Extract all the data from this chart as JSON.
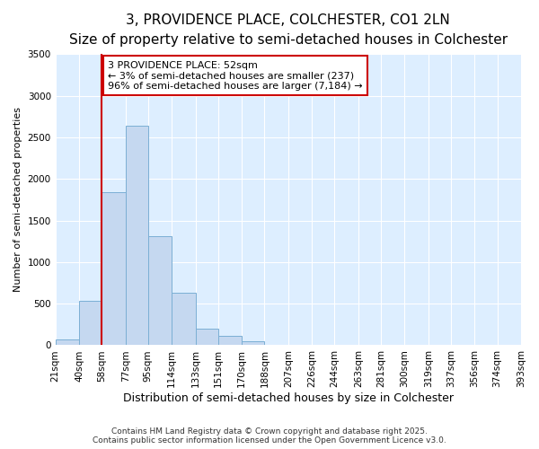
{
  "title_line1": "3, PROVIDENCE PLACE, COLCHESTER, CO1 2LN",
  "title_line2": "Size of property relative to semi-detached houses in Colchester",
  "xlabel": "Distribution of semi-detached houses by size in Colchester",
  "ylabel": "Number of semi-detached properties",
  "footer_line1": "Contains HM Land Registry data © Crown copyright and database right 2025.",
  "footer_line2": "Contains public sector information licensed under the Open Government Licence v3.0.",
  "annotation_title": "3 PROVIDENCE PLACE: 52sqm",
  "annotation_line1": "← 3% of semi-detached houses are smaller (237)",
  "annotation_line2": "96% of semi-detached houses are larger (7,184) →",
  "property_size": 52,
  "bin_edges": [
    21,
    40,
    58,
    77,
    95,
    114,
    133,
    151,
    170,
    188,
    207,
    226,
    244,
    263,
    281,
    300,
    319,
    337,
    356,
    374,
    393
  ],
  "bar_heights": [
    75,
    535,
    1840,
    2640,
    1310,
    635,
    200,
    110,
    50,
    10,
    5,
    2,
    2,
    0,
    0,
    0,
    0,
    0,
    0,
    0
  ],
  "bar_color": "#c5d8f0",
  "bar_edge_color": "#7bafd4",
  "vline_color": "#cc0000",
  "vline_x": 58,
  "annotation_box_color": "#ffffff",
  "annotation_box_edge": "#cc0000",
  "ylim": [
    0,
    3500
  ],
  "yticks": [
    0,
    500,
    1000,
    1500,
    2000,
    2500,
    3000,
    3500
  ],
  "fig_bg": "#ffffff",
  "plot_bg": "#ddeeff",
  "grid_color": "#ffffff",
  "title_fontsize": 11,
  "subtitle_fontsize": 9.5,
  "tick_fontsize": 7.5,
  "ylabel_fontsize": 8,
  "xlabel_fontsize": 9,
  "footer_fontsize": 6.5,
  "annotation_fontsize": 8
}
